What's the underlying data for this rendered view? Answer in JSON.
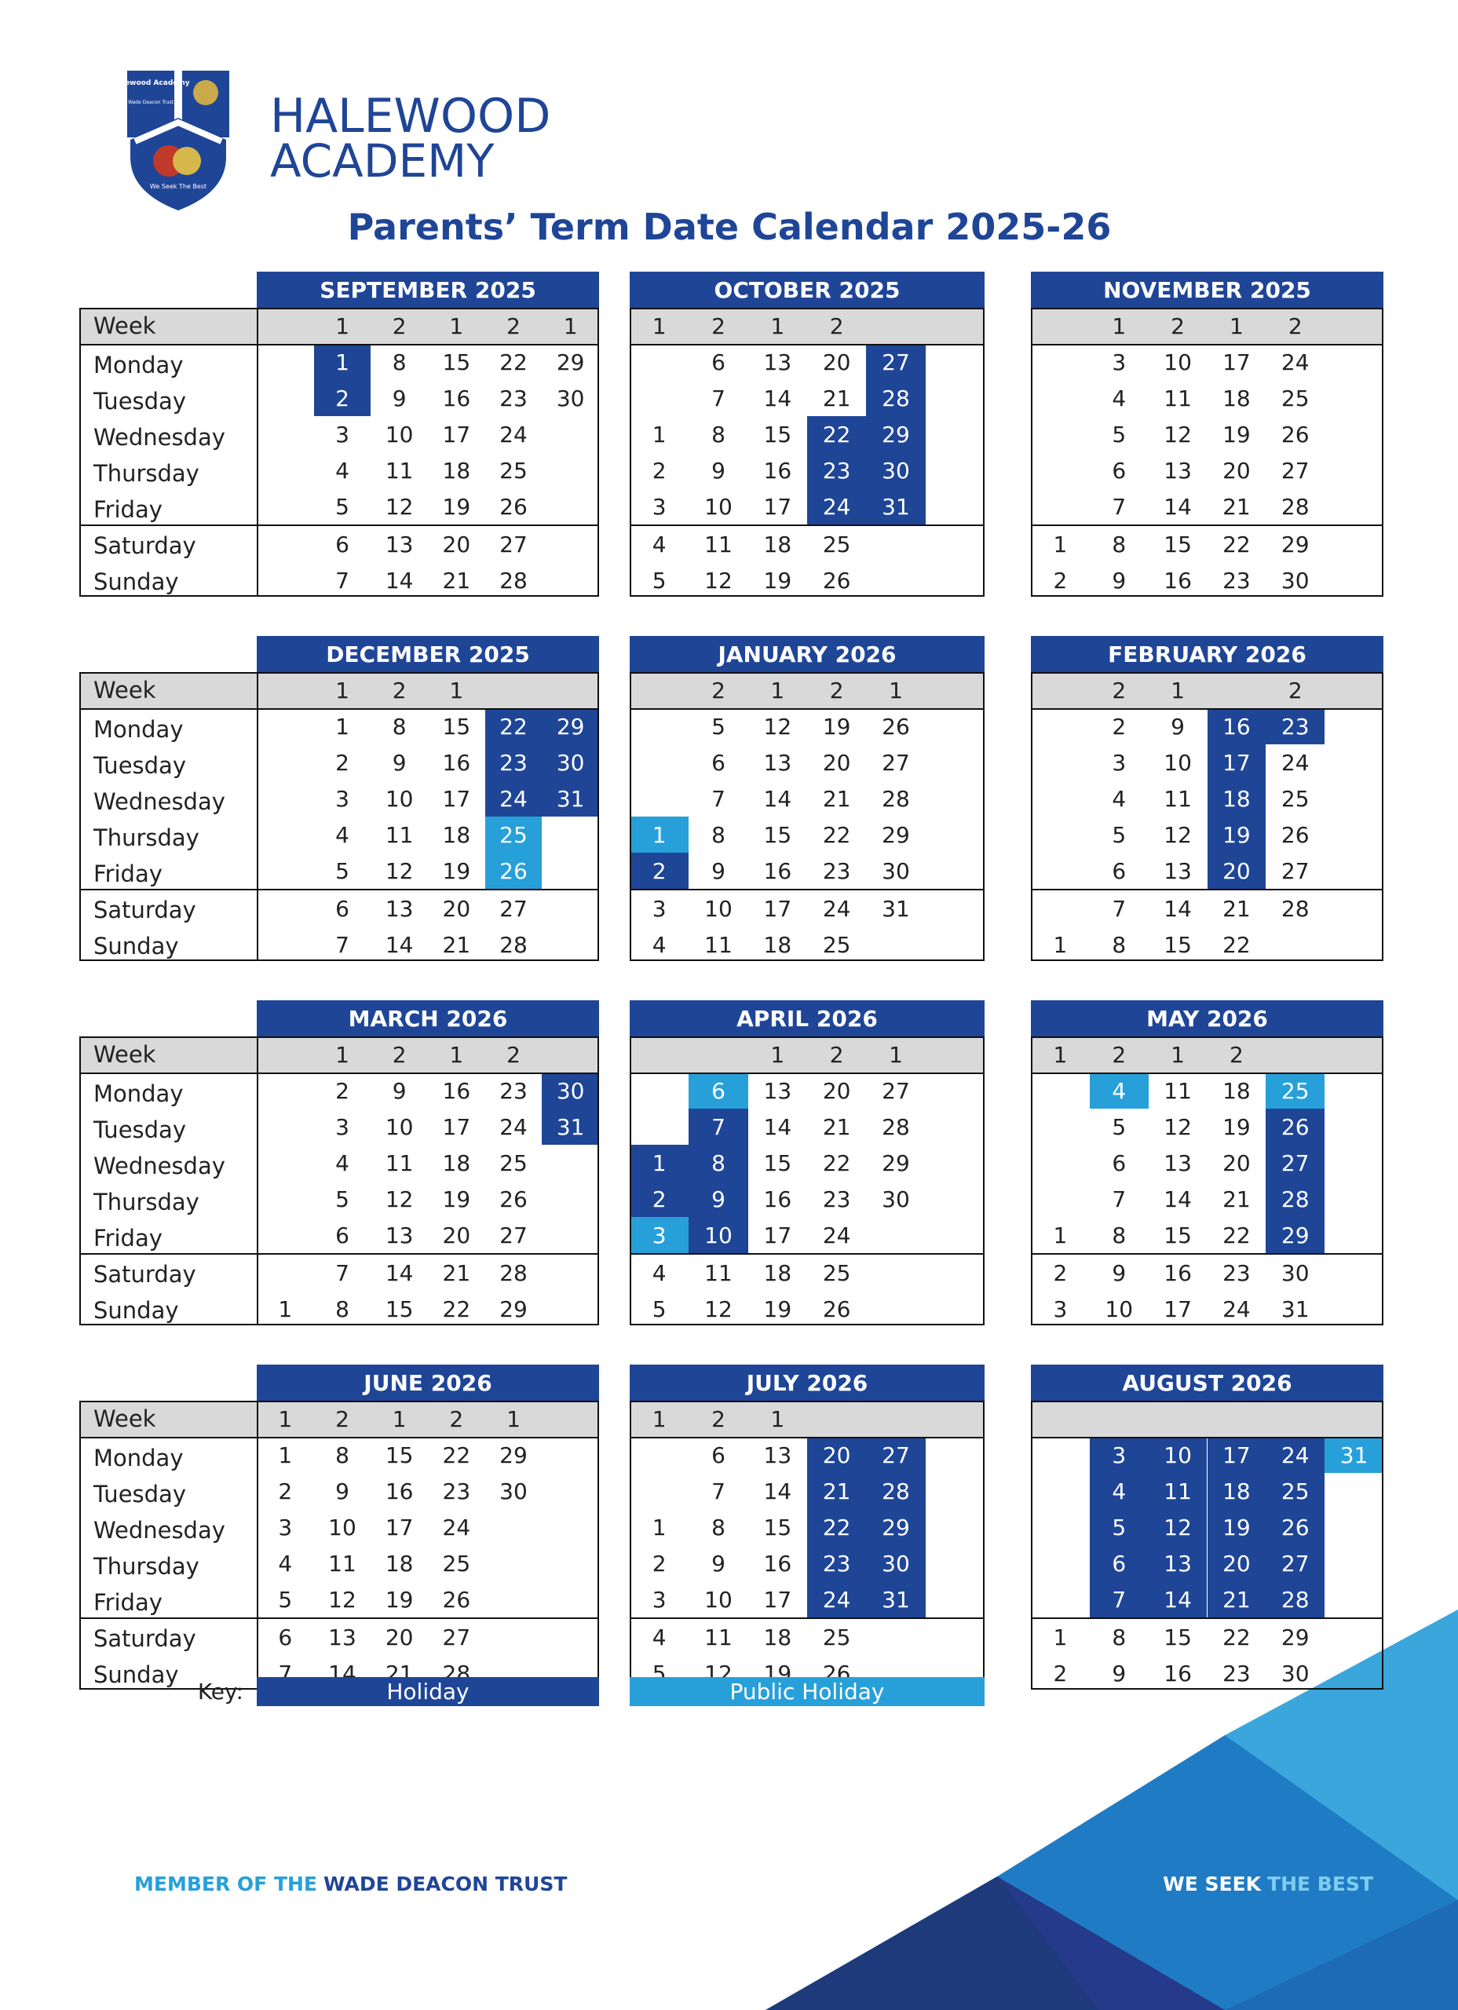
{
  "logo": {
    "shield_top": "Halewood Academy",
    "shield_sub": "Wade Deacon Trust",
    "motto": "We Seek The Best",
    "name_1": "HALEWOOD",
    "name_2": "ACADEMY"
  },
  "title": "Parents’ Term Date Calendar 2025-26",
  "labels": {
    "week": "Week",
    "weekdays": [
      "Monday",
      "Tuesday",
      "Wednesday",
      "Thursday",
      "Friday",
      "Saturday",
      "Sunday"
    ]
  },
  "key_colors": {
    "holiday": "#1f4597",
    "public_holiday": "#27a0da"
  },
  "months": [
    {
      "name": "SEPTEMBER 2025",
      "weeks": [
        null,
        1,
        2,
        1,
        2,
        1
      ],
      "days": [
        [
          null,
          {
            "day": 1,
            "key": "holiday"
          },
          8,
          15,
          22,
          29
        ],
        [
          null,
          {
            "day": 2,
            "key": "holiday"
          },
          9,
          16,
          23,
          30
        ],
        [
          null,
          3,
          10,
          17,
          24,
          null
        ],
        [
          null,
          4,
          11,
          18,
          25,
          null
        ],
        [
          null,
          5,
          12,
          19,
          26,
          null
        ],
        [
          null,
          6,
          13,
          20,
          27,
          null
        ],
        [
          null,
          7,
          14,
          21,
          28,
          null
        ]
      ]
    },
    {
      "name": "OCTOBER 2025",
      "weeks": [
        1,
        2,
        1,
        2,
        null,
        null
      ],
      "days": [
        [
          null,
          6,
          13,
          20,
          {
            "day": 27,
            "key": "holiday"
          },
          null
        ],
        [
          null,
          7,
          14,
          21,
          {
            "day": 28,
            "key": "holiday"
          },
          null
        ],
        [
          1,
          8,
          15,
          {
            "day": 22,
            "key": "holiday"
          },
          {
            "day": 29,
            "key": "holiday"
          },
          null
        ],
        [
          2,
          9,
          16,
          {
            "day": 23,
            "key": "holiday"
          },
          {
            "day": 30,
            "key": "holiday"
          },
          null
        ],
        [
          3,
          10,
          17,
          {
            "day": 24,
            "key": "holiday"
          },
          {
            "day": 31,
            "key": "holiday"
          },
          null
        ],
        [
          4,
          11,
          18,
          25,
          null,
          null
        ],
        [
          5,
          12,
          19,
          26,
          null,
          null
        ]
      ]
    },
    {
      "name": "NOVEMBER 2025",
      "weeks": [
        null,
        1,
        2,
        1,
        2,
        null
      ],
      "days": [
        [
          null,
          3,
          10,
          17,
          24,
          null
        ],
        [
          null,
          4,
          11,
          18,
          25,
          null
        ],
        [
          null,
          5,
          12,
          19,
          26,
          null
        ],
        [
          null,
          6,
          13,
          20,
          27,
          null
        ],
        [
          null,
          7,
          14,
          21,
          28,
          null
        ],
        [
          1,
          8,
          15,
          22,
          29,
          null
        ],
        [
          2,
          9,
          16,
          23,
          30,
          null
        ]
      ]
    },
    {
      "name": "DECEMBER 2025",
      "weeks": [
        null,
        1,
        2,
        1,
        null,
        null
      ],
      "days": [
        [
          null,
          1,
          8,
          15,
          {
            "day": 22,
            "key": "holiday"
          },
          {
            "day": 29,
            "key": "holiday"
          }
        ],
        [
          null,
          2,
          9,
          16,
          {
            "day": 23,
            "key": "holiday"
          },
          {
            "day": 30,
            "key": "holiday"
          }
        ],
        [
          null,
          3,
          10,
          17,
          {
            "day": 24,
            "key": "holiday"
          },
          {
            "day": 31,
            "key": "holiday"
          }
        ],
        [
          null,
          4,
          11,
          18,
          {
            "day": 25,
            "key": "public_holiday"
          },
          null
        ],
        [
          null,
          5,
          12,
          19,
          {
            "day": 26,
            "key": "public_holiday"
          },
          null
        ],
        [
          null,
          6,
          13,
          20,
          27,
          null
        ],
        [
          null,
          7,
          14,
          21,
          28,
          null
        ]
      ]
    },
    {
      "name": "JANUARY 2026",
      "weeks": [
        null,
        2,
        1,
        2,
        1,
        null
      ],
      "days": [
        [
          null,
          5,
          12,
          19,
          26,
          null
        ],
        [
          null,
          6,
          13,
          20,
          27,
          null
        ],
        [
          null,
          7,
          14,
          21,
          28,
          null
        ],
        [
          {
            "day": 1,
            "key": "public_holiday"
          },
          8,
          15,
          22,
          29,
          null
        ],
        [
          {
            "day": 2,
            "key": "holiday"
          },
          9,
          16,
          23,
          30,
          null
        ],
        [
          3,
          10,
          17,
          24,
          31,
          null
        ],
        [
          4,
          11,
          18,
          25,
          null,
          null
        ]
      ]
    },
    {
      "name": "FEBRUARY 2026",
      "weeks": [
        null,
        2,
        1,
        null,
        2,
        null
      ],
      "days": [
        [
          null,
          2,
          9,
          {
            "day": 16,
            "key": "holiday"
          },
          {
            "day": 23,
            "key": "holiday"
          },
          null
        ],
        [
          null,
          3,
          10,
          {
            "day": 17,
            "key": "holiday"
          },
          24,
          null
        ],
        [
          null,
          4,
          11,
          {
            "day": 18,
            "key": "holiday"
          },
          25,
          null
        ],
        [
          null,
          5,
          12,
          {
            "day": 19,
            "key": "holiday"
          },
          26,
          null
        ],
        [
          null,
          6,
          13,
          {
            "day": 20,
            "key": "holiday"
          },
          27,
          null
        ],
        [
          null,
          7,
          14,
          21,
          28,
          null
        ],
        [
          1,
          8,
          15,
          22,
          null,
          null
        ]
      ]
    },
    {
      "name": "MARCH 2026",
      "weeks": [
        null,
        1,
        2,
        1,
        2,
        null
      ],
      "days": [
        [
          null,
          2,
          9,
          16,
          23,
          {
            "day": 30,
            "key": "holiday"
          }
        ],
        [
          null,
          3,
          10,
          17,
          24,
          {
            "day": 31,
            "key": "holiday"
          }
        ],
        [
          null,
          4,
          11,
          18,
          25,
          null
        ],
        [
          null,
          5,
          12,
          19,
          26,
          null
        ],
        [
          null,
          6,
          13,
          20,
          27,
          null
        ],
        [
          null,
          7,
          14,
          21,
          28,
          null
        ],
        [
          1,
          8,
          15,
          22,
          29,
          null
        ]
      ]
    },
    {
      "name": "APRIL 2026",
      "weeks": [
        null,
        null,
        1,
        2,
        1,
        null
      ],
      "days": [
        [
          null,
          {
            "day": 6,
            "key": "public_holiday"
          },
          13,
          20,
          27,
          null
        ],
        [
          null,
          {
            "day": 7,
            "key": "holiday"
          },
          14,
          21,
          28,
          null
        ],
        [
          {
            "day": 1,
            "key": "holiday"
          },
          {
            "day": 8,
            "key": "holiday"
          },
          15,
          22,
          29,
          null
        ],
        [
          {
            "day": 2,
            "key": "holiday"
          },
          {
            "day": 9,
            "key": "holiday"
          },
          16,
          23,
          30,
          null
        ],
        [
          {
            "day": 3,
            "key": "public_holiday"
          },
          {
            "day": 10,
            "key": "holiday"
          },
          17,
          24,
          null,
          null
        ],
        [
          4,
          11,
          18,
          25,
          null,
          null
        ],
        [
          5,
          12,
          19,
          26,
          null,
          null
        ]
      ]
    },
    {
      "name": "MAY 2026",
      "weeks": [
        1,
        2,
        1,
        2,
        null,
        null
      ],
      "days": [
        [
          null,
          {
            "day": 4,
            "key": "public_holiday"
          },
          11,
          18,
          {
            "day": 25,
            "key": "public_holiday"
          },
          null
        ],
        [
          null,
          5,
          12,
          19,
          {
            "day": 26,
            "key": "holiday"
          },
          null
        ],
        [
          null,
          6,
          13,
          20,
          {
            "day": 27,
            "key": "holiday"
          },
          null
        ],
        [
          null,
          7,
          14,
          21,
          {
            "day": 28,
            "key": "holiday"
          },
          null
        ],
        [
          1,
          8,
          15,
          22,
          {
            "day": 29,
            "key": "holiday"
          },
          null
        ],
        [
          2,
          9,
          16,
          23,
          30,
          null
        ],
        [
          3,
          10,
          17,
          24,
          31,
          null
        ]
      ]
    },
    {
      "name": "JUNE 2026",
      "weeks": [
        1,
        2,
        1,
        2,
        1,
        null
      ],
      "days": [
        [
          1,
          8,
          15,
          22,
          29,
          null
        ],
        [
          2,
          9,
          16,
          23,
          30,
          null
        ],
        [
          3,
          10,
          17,
          24,
          null,
          null
        ],
        [
          4,
          11,
          18,
          25,
          null,
          null
        ],
        [
          5,
          12,
          19,
          26,
          null,
          null
        ],
        [
          6,
          13,
          20,
          27,
          null,
          null
        ],
        [
          7,
          14,
          21,
          28,
          null,
          null
        ]
      ]
    },
    {
      "name": "JULY 2026",
      "weeks": [
        1,
        2,
        1,
        null,
        null,
        null
      ],
      "days": [
        [
          null,
          6,
          13,
          {
            "day": 20,
            "key": "holiday"
          },
          {
            "day": 27,
            "key": "holiday"
          },
          null
        ],
        [
          null,
          7,
          14,
          {
            "day": 21,
            "key": "holiday"
          },
          {
            "day": 28,
            "key": "holiday"
          },
          null
        ],
        [
          1,
          8,
          15,
          {
            "day": 22,
            "key": "holiday"
          },
          {
            "day": 29,
            "key": "holiday"
          },
          null
        ],
        [
          2,
          9,
          16,
          {
            "day": 23,
            "key": "holiday"
          },
          {
            "day": 30,
            "key": "holiday"
          },
          null
        ],
        [
          3,
          10,
          17,
          {
            "day": 24,
            "key": "holiday"
          },
          {
            "day": 31,
            "key": "holiday"
          },
          null
        ],
        [
          4,
          11,
          18,
          25,
          null,
          null
        ],
        [
          5,
          12,
          19,
          26,
          null,
          null
        ]
      ]
    },
    {
      "name": "AUGUST 2026",
      "weeks": [
        null,
        null,
        null,
        null,
        null,
        null
      ],
      "days": [
        [
          null,
          {
            "day": 3,
            "key": "holiday"
          },
          {
            "day": 10,
            "key": "holiday"
          },
          {
            "day": 17,
            "key": "holiday"
          },
          {
            "day": 24,
            "key": "holiday"
          },
          {
            "day": 31,
            "key": "public_holiday"
          }
        ],
        [
          null,
          {
            "day": 4,
            "key": "holiday"
          },
          {
            "day": 11,
            "key": "holiday"
          },
          {
            "day": 18,
            "key": "holiday"
          },
          {
            "day": 25,
            "key": "holiday"
          },
          null
        ],
        [
          null,
          {
            "day": 5,
            "key": "holiday"
          },
          {
            "day": 12,
            "key": "holiday"
          },
          {
            "day": 19,
            "key": "holiday"
          },
          {
            "day": 26,
            "key": "holiday"
          },
          null
        ],
        [
          null,
          {
            "day": 6,
            "key": "holiday"
          },
          {
            "day": 13,
            "key": "holiday"
          },
          {
            "day": 20,
            "key": "holiday"
          },
          {
            "day": 27,
            "key": "holiday"
          },
          null
        ],
        [
          null,
          {
            "day": 7,
            "key": "holiday"
          },
          {
            "day": 14,
            "key": "holiday"
          },
          {
            "day": 21,
            "key": "holiday"
          },
          {
            "day": 28,
            "key": "holiday"
          },
          null
        ],
        [
          1,
          8,
          15,
          22,
          29,
          null
        ],
        [
          2,
          9,
          16,
          23,
          30,
          null
        ]
      ]
    }
  ],
  "key": {
    "label": "Key:",
    "holiday": "Holiday",
    "public_holiday": "Public Holiday"
  },
  "footer": {
    "left_1": "MEMBER OF THE",
    "left_2": "WADE DEACON TRUST",
    "right_1": "WE SEEK",
    "right_2": "THE BEST"
  }
}
